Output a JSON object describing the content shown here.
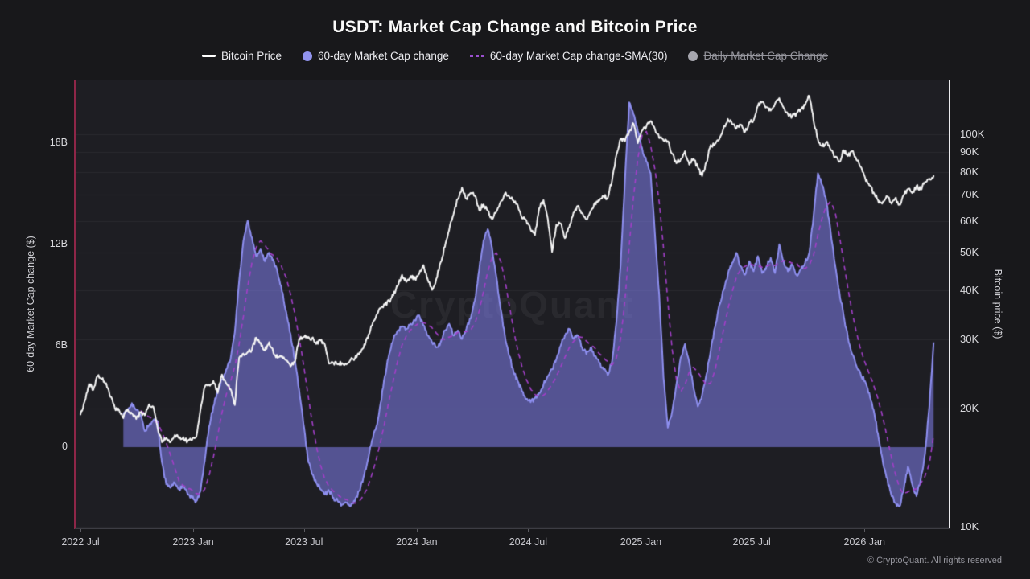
{
  "header": {
    "title": "USDT: Market Cap Change and Bitcoin Price",
    "legend": [
      {
        "label": "Bitcoin Price",
        "marker": "line",
        "color": "#ffffff",
        "disabled": false
      },
      {
        "label": "60-day Market Cap change",
        "marker": "circle",
        "color": "#9193ee",
        "disabled": false
      },
      {
        "label": "60-day Market Cap change-SMA(30)",
        "marker": "dashes",
        "color": "#9b50d0",
        "disabled": false
      },
      {
        "label": "Daily Market Cap Change",
        "marker": "circle",
        "color": "#a6a6ae",
        "disabled": true
      }
    ]
  },
  "watermark": {
    "text": "CryptoQuant"
  },
  "footer": {
    "copyright": "© CryptoQuant. All rights reserved"
  },
  "colors": {
    "bg_page": "#18181b",
    "bg_plot": "#1e1e23",
    "grid": "rgba(255,255,255,0.055)",
    "axis_red": "#8e2648",
    "axis_white": "#eaeaee",
    "btc_line": "#f5f5f5",
    "mc_fill": "rgba(129,127,238,0.55)",
    "mc_stroke": "#8e8fef",
    "sma_line": "#a23fc8",
    "disabled_text": "#97979f"
  },
  "chart_data": {
    "type": "mixed",
    "title": "USDT: Market Cap Change and Bitcoin Price",
    "x_axis": {
      "start_date": "2022-07-01",
      "ticks": [
        {
          "label": "2022 Jul",
          "days": 0
        },
        {
          "label": "2023 Jan",
          "days": 184
        },
        {
          "label": "2023 Jul",
          "days": 365
        },
        {
          "label": "2024 Jan",
          "days": 549
        },
        {
          "label": "2024 Jul",
          "days": 731
        },
        {
          "label": "2025 Jan",
          "days": 915
        },
        {
          "label": "2025 Jul",
          "days": 1096
        },
        {
          "label": "2026 Jan",
          "days": 1280
        }
      ]
    },
    "y_left": {
      "title": "60-day Market Cap change ($)",
      "unit": "billion USD",
      "scale": "linear",
      "range": [
        -4.807,
        21.7
      ],
      "ticks": [
        {
          "label": "18B",
          "value": 18
        },
        {
          "label": "12B",
          "value": 12
        },
        {
          "label": "6B",
          "value": 6
        },
        {
          "label": "0",
          "value": 0
        }
      ]
    },
    "y_right": {
      "title": "Bitcoin price ($)",
      "unit": "USD",
      "scale": "log",
      "range": [
        9900,
        137000
      ],
      "ticks": [
        {
          "label": "100K",
          "value": 100
        },
        {
          "label": "90K",
          "value": 90
        },
        {
          "label": "80K",
          "value": 80
        },
        {
          "label": "70K",
          "value": 70
        },
        {
          "label": "60K",
          "value": 60
        },
        {
          "label": "50K",
          "value": 50
        },
        {
          "label": "40K",
          "value": 40
        },
        {
          "label": "30K",
          "value": 30
        },
        {
          "label": "20K",
          "value": 20
        },
        {
          "label": "10K",
          "value": 10
        }
      ]
    },
    "series": [
      {
        "name": "Bitcoin Price",
        "type": "line",
        "axis": "right",
        "unit": "thousand USD",
        "start_day": 0,
        "interval_days": 7,
        "values": [
          19.3,
          20.9,
          23.1,
          22.3,
          24.2,
          23.8,
          23.2,
          21.4,
          20.1,
          19.8,
          18.9,
          19.9,
          19.4,
          18.8,
          19.5,
          19.2,
          20.5,
          20.2,
          17.8,
          16.4,
          16.8,
          16.4,
          17.1,
          16.8,
          16.9,
          16.5,
          16.6,
          16.9,
          19.9,
          22.7,
          23.0,
          23.5,
          21.9,
          24.4,
          23.2,
          22.4,
          20.4,
          26.9,
          27.6,
          27.8,
          28.3,
          30.3,
          29.4,
          28.1,
          29.5,
          27.7,
          26.9,
          27.2,
          26.5,
          25.6,
          26.3,
          30.1,
          30.4,
          30.3,
          30.2,
          29.2,
          29.8,
          29.1,
          26.0,
          26.1,
          25.9,
          26.1,
          25.9,
          26.6,
          26.8,
          27.5,
          28.5,
          30.2,
          32.5,
          34.5,
          36.0,
          36.8,
          37.6,
          38.8,
          41.0,
          43.8,
          42.0,
          43.5,
          42.8,
          44.0,
          46.4,
          42.6,
          40.1,
          42.8,
          47.1,
          51.6,
          57.0,
          62.4,
          68.3,
          73.1,
          68.4,
          70.8,
          69.5,
          64.1,
          66.2,
          63.8,
          60.7,
          63.4,
          67.2,
          70.6,
          69.3,
          67.7,
          65.9,
          61.0,
          60.3,
          57.1,
          55.3,
          64.7,
          67.9,
          60.9,
          50.1,
          58.8,
          59.2,
          54.3,
          57.9,
          63.1,
          65.6,
          62.9,
          60.7,
          63.5,
          66.9,
          67.6,
          69.4,
          68.8,
          76.3,
          88.5,
          97.2,
          95.8,
          101.6,
          106.3,
          94.8,
          102.1,
          104.6,
          108.0,
          102.9,
          97.7,
          96.3,
          95.9,
          89.1,
          84.3,
          86.3,
          90.4,
          83.6,
          86.5,
          82.4,
          78.2,
          84.8,
          93.8,
          94.3,
          97.0,
          103.6,
          109.3,
          106.1,
          103.4,
          105.5,
          101.3,
          107.0,
          108.4,
          118.0,
          120.9,
          117.2,
          114.8,
          119.6,
          123.5,
          116.8,
          112.6,
          110.8,
          112.9,
          115.4,
          118.3,
          125.0,
          108.0,
          97.0,
          93.0,
          95.5,
          91.0,
          87.5,
          85.0,
          91.0,
          88.0,
          90.5,
          86.0,
          82.5,
          77.5,
          74.0,
          71.0,
          68.0,
          66.5,
          69.5,
          67.0,
          68.5,
          66.2,
          69.8,
          72.5,
          70.8,
          73.8,
          72.2,
          75.5,
          77.0,
          78.2
        ]
      },
      {
        "name": "60-day Market Cap change",
        "type": "area",
        "axis": "left",
        "unit": "billion USD",
        "start_day": 70,
        "interval_days": 7,
        "values": [
          1.9,
          2.2,
          2.6,
          2.2,
          1.9,
          0.95,
          1.3,
          1.6,
          1.5,
          -0.9,
          -2.2,
          -2.4,
          -2.1,
          -2.5,
          -2.3,
          -2.8,
          -3.0,
          -3.2,
          -2.6,
          -0.8,
          1.2,
          2.4,
          3.3,
          4.0,
          4.6,
          5.2,
          6.8,
          9.8,
          12.2,
          13.4,
          12.4,
          11.3,
          11.7,
          11.0,
          11.5,
          11.1,
          10.3,
          9.2,
          8.0,
          6.7,
          5.2,
          3.4,
          1.4,
          -0.6,
          -1.6,
          -2.1,
          -2.5,
          -2.8,
          -2.6,
          -3.0,
          -3.2,
          -3.4,
          -3.3,
          -3.5,
          -3.2,
          -2.6,
          -1.8,
          -0.8,
          0.4,
          1.2,
          2.6,
          4.2,
          5.5,
          6.4,
          6.9,
          7.15,
          7.0,
          7.3,
          7.5,
          7.8,
          7.2,
          6.6,
          6.2,
          5.9,
          6.2,
          6.9,
          7.3,
          6.6,
          6.9,
          6.4,
          7.0,
          7.6,
          8.7,
          10.5,
          12.2,
          12.9,
          11.8,
          10.1,
          8.2,
          6.6,
          5.4,
          4.5,
          3.9,
          3.3,
          2.85,
          2.65,
          2.9,
          3.2,
          3.7,
          4.2,
          4.6,
          5.2,
          6.0,
          6.6,
          7.0,
          6.4,
          6.6,
          5.9,
          5.5,
          5.9,
          5.4,
          5.0,
          4.6,
          4.25,
          5.1,
          7.4,
          10.8,
          15.8,
          20.4,
          19.7,
          18.7,
          17.7,
          16.9,
          16.2,
          12.6,
          9.0,
          4.1,
          1.15,
          2.1,
          3.7,
          5.3,
          6.1,
          5.0,
          3.5,
          2.4,
          3.1,
          4.3,
          5.7,
          7.1,
          8.4,
          9.3,
          10.2,
          10.9,
          11.5,
          10.7,
          10.2,
          11.0,
          10.4,
          11.3,
          10.3,
          10.7,
          11.2,
          10.3,
          12.0,
          11.0,
          10.4,
          10.8,
          10.2,
          10.5,
          10.9,
          11.5,
          13.7,
          16.2,
          15.5,
          14.5,
          12.7,
          10.8,
          9.2,
          7.8,
          6.5,
          5.5,
          4.8,
          4.3,
          3.9,
          3.2,
          2.2,
          0.8,
          -0.6,
          -1.8,
          -2.7,
          -3.3,
          -3.5,
          -2.6,
          -1.15,
          -2.2,
          -2.9,
          -1.9,
          -0.4,
          2.4,
          6.2
        ]
      },
      {
        "name": "60-day Market Cap change-SMA(30)",
        "type": "dashed-line",
        "axis": "left",
        "unit": "billion USD",
        "derived_from": "60-day Market Cap change",
        "window_points": 5
      },
      {
        "name": "Daily Market Cap Change",
        "type": "line",
        "axis": "left",
        "visible": false,
        "values": []
      }
    ]
  }
}
